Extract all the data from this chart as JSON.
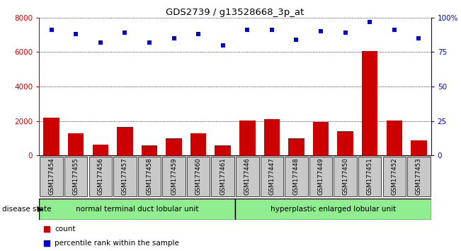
{
  "title": "GDS2739 / g13528668_3p_at",
  "samples": [
    "GSM177454",
    "GSM177455",
    "GSM177456",
    "GSM177457",
    "GSM177458",
    "GSM177459",
    "GSM177460",
    "GSM177461",
    "GSM177446",
    "GSM177447",
    "GSM177448",
    "GSM177449",
    "GSM177450",
    "GSM177451",
    "GSM177452",
    "GSM177453"
  ],
  "counts": [
    2200,
    1300,
    650,
    1650,
    600,
    1000,
    1300,
    600,
    2050,
    2100,
    1000,
    1950,
    1400,
    6050,
    2050,
    900
  ],
  "percentiles": [
    91,
    88,
    82,
    89,
    82,
    85,
    88,
    80,
    91,
    91,
    84,
    90,
    89,
    97,
    91,
    85
  ],
  "group1_label": "normal terminal duct lobular unit",
  "group2_label": "hyperplastic enlarged lobular unit",
  "group1_count": 8,
  "group2_count": 8,
  "bar_color": "#cc0000",
  "dot_color": "#0000cc",
  "left_axis_color": "#cc0000",
  "right_axis_color": "#0000cc",
  "ylim_left": [
    0,
    8000
  ],
  "ylim_right": [
    0,
    100
  ],
  "yticks_left": [
    0,
    2000,
    4000,
    6000,
    8000
  ],
  "yticks_right": [
    0,
    25,
    50,
    75,
    100
  ],
  "ytick_labels_right": [
    "0",
    "25",
    "50",
    "75",
    "100%"
  ],
  "group1_color": "#90ee90",
  "group2_color": "#90ee90",
  "tick_bg_color": "#c8c8c8",
  "legend_count_label": "count",
  "legend_pct_label": "percentile rank within the sample"
}
